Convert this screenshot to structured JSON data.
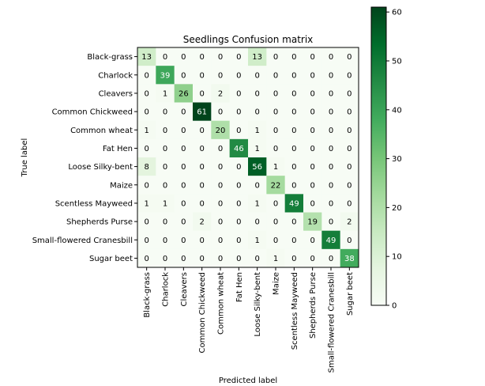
{
  "chart_data": {
    "type": "heatmap",
    "title": "Seedlings Confusion matrix",
    "xlabel": "Predicted label",
    "ylabel": "True label",
    "classes": [
      "Black-grass",
      "Charlock",
      "Cleavers",
      "Common Chickweed",
      "Common wheat",
      "Fat Hen",
      "Loose Silky-bent",
      "Maize",
      "Scentless Mayweed",
      "Shepherds Purse",
      "Small-flowered Cranesbill",
      "Sugar beet"
    ],
    "matrix": [
      [
        13,
        0,
        0,
        0,
        0,
        0,
        13,
        0,
        0,
        0,
        0,
        0
      ],
      [
        0,
        39,
        0,
        0,
        0,
        0,
        0,
        0,
        0,
        0,
        0,
        0
      ],
      [
        0,
        1,
        26,
        0,
        2,
        0,
        0,
        0,
        0,
        0,
        0,
        0
      ],
      [
        0,
        0,
        0,
        61,
        0,
        0,
        0,
        0,
        0,
        0,
        0,
        0
      ],
      [
        1,
        0,
        0,
        0,
        20,
        0,
        1,
        0,
        0,
        0,
        0,
        0
      ],
      [
        0,
        0,
        0,
        0,
        0,
        46,
        1,
        0,
        0,
        0,
        0,
        0
      ],
      [
        8,
        0,
        0,
        0,
        0,
        0,
        56,
        1,
        0,
        0,
        0,
        0
      ],
      [
        0,
        0,
        0,
        0,
        0,
        0,
        0,
        22,
        0,
        0,
        0,
        0
      ],
      [
        1,
        1,
        0,
        0,
        0,
        0,
        1,
        0,
        49,
        0,
        0,
        0
      ],
      [
        0,
        0,
        0,
        2,
        0,
        0,
        0,
        0,
        0,
        19,
        0,
        2
      ],
      [
        0,
        0,
        0,
        0,
        0,
        0,
        1,
        0,
        0,
        0,
        49,
        0
      ],
      [
        0,
        0,
        0,
        0,
        0,
        0,
        0,
        1,
        0,
        0,
        0,
        38
      ]
    ],
    "colorbar": {
      "min": 0,
      "max": 61,
      "ticks": [
        0,
        10,
        20,
        30,
        40,
        50,
        60
      ]
    },
    "colormap": "Greens",
    "text_threshold": 30.5
  }
}
